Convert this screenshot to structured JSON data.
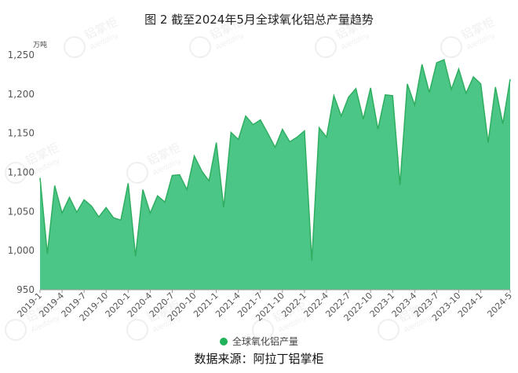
{
  "chart_data": {
    "type": "area",
    "title": "图 2 截至2024年5月全球氧化铝总产量趋势",
    "ylabel": "万吨",
    "ylim": [
      950,
      1250
    ],
    "yticks": [
      950,
      1000,
      1050,
      1100,
      1150,
      1200,
      1250
    ],
    "grid": false,
    "legend_position": "bottom",
    "area_color": "#4cc686",
    "line_color": "#2fae61",
    "legend_marker_color": "#21b35a",
    "x": [
      "2019-1",
      "2019-2",
      "2019-3",
      "2019-4",
      "2019-5",
      "2019-6",
      "2019-7",
      "2019-8",
      "2019-9",
      "2019-10",
      "2019-11",
      "2019-12",
      "2020-1",
      "2020-2",
      "2020-3",
      "2020-4",
      "2020-5",
      "2020-6",
      "2020-7",
      "2020-8",
      "2020-9",
      "2020-10",
      "2020-11",
      "2020-12",
      "2021-1",
      "2021-2",
      "2021-3",
      "2021-4",
      "2021-5",
      "2021-6",
      "2021-7",
      "2021-8",
      "2021-9",
      "2021-10",
      "2021-11",
      "2021-12",
      "2022-1",
      "2022-2",
      "2022-3",
      "2022-4",
      "2022-5",
      "2022-6",
      "2022-7",
      "2022-8",
      "2022-9",
      "2022-10",
      "2022-11",
      "2022-12",
      "2023-1",
      "2023-2",
      "2023-3",
      "2023-4",
      "2023-5",
      "2023-6",
      "2023-7",
      "2023-8",
      "2023-9",
      "2023-10",
      "2023-11",
      "2023-12",
      "2024-1",
      "2024-2",
      "2024-3",
      "2024-4",
      "2024-5"
    ],
    "xtick_labels": [
      "2019-1",
      "2019-4",
      "2019-7",
      "2019-10",
      "2020-1",
      "2020-4",
      "2020-7",
      "2020-10",
      "2021-1",
      "2021-4",
      "2021-7",
      "2021-10",
      "2022-1",
      "2022-4",
      "2022-7",
      "2022-10",
      "2023-1",
      "2023-4",
      "2023-7",
      "2023-10",
      "2024-1",
      "2024-5"
    ],
    "series": [
      {
        "name": "全球氧化铝产量",
        "values": [
          1093,
          996,
          1083,
          1048,
          1068,
          1049,
          1065,
          1057,
          1043,
          1055,
          1042,
          1039,
          1086,
          993,
          1078,
          1048,
          1070,
          1062,
          1096,
          1097,
          1078,
          1121,
          1102,
          1089,
          1138,
          1055,
          1151,
          1142,
          1172,
          1161,
          1167,
          1150,
          1132,
          1155,
          1139,
          1145,
          1153,
          987,
          1157,
          1145,
          1198,
          1172,
          1196,
          1207,
          1168,
          1208,
          1155,
          1199,
          1198,
          1084,
          1213,
          1186,
          1238,
          1202,
          1240,
          1244,
          1206,
          1232,
          1201,
          1222,
          1213,
          1138,
          1209,
          1162,
          1219
        ]
      }
    ]
  },
  "watermark": {
    "brand_cn": "铝掌柜",
    "brand_en": "Aleddiny"
  },
  "legend": {
    "label": "全球氧化铝产量"
  },
  "source": "数据来源：阿拉丁铝掌柜"
}
